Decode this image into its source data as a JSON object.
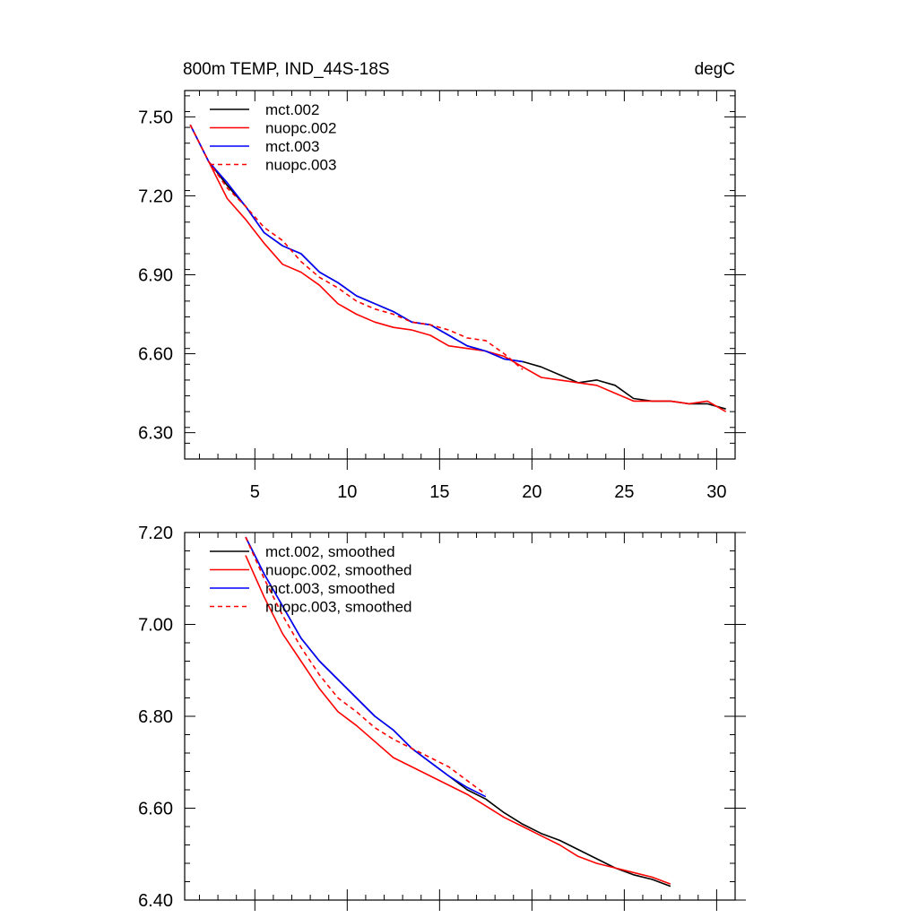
{
  "chart_data": [
    {
      "type": "line",
      "title": "800m TEMP, IND_44S-18S",
      "units": "degC",
      "xlabel": "",
      "ylabel": "",
      "xlim": [
        1.2,
        31.0
      ],
      "ylim": [
        6.2,
        7.6
      ],
      "xticks": [
        5,
        10,
        15,
        20,
        25,
        30
      ],
      "xtick_labels": [
        "5",
        "10",
        "15",
        "20",
        "25",
        "30"
      ],
      "yticks": [
        6.3,
        6.6,
        6.9,
        7.2,
        7.5
      ],
      "ytick_labels": [
        "6.30",
        "6.60",
        "6.90",
        "7.20",
        "7.50"
      ],
      "legend_position": "top-left",
      "series": [
        {
          "name": "mct.002",
          "color": "#000000",
          "style": "solid",
          "x": [
            1.5,
            2.5,
            3.5,
            4.5,
            5.5,
            6.5,
            7.5,
            8.5,
            9.5,
            10.5,
            11.5,
            12.5,
            13.5,
            14.5,
            15.5,
            16.5,
            17.5,
            18.5,
            19.5,
            20.5,
            21.5,
            22.5,
            23.5,
            24.5,
            25.5,
            26.5,
            27.5,
            28.5,
            29.5,
            30.5
          ],
          "values": [
            7.47,
            7.33,
            7.24,
            7.16,
            7.06,
            7.01,
            6.98,
            6.91,
            6.87,
            6.82,
            6.79,
            6.76,
            6.72,
            6.71,
            6.67,
            6.63,
            6.61,
            6.58,
            6.57,
            6.55,
            6.52,
            6.49,
            6.5,
            6.48,
            6.43,
            6.42,
            6.42,
            6.41,
            6.41,
            6.39
          ]
        },
        {
          "name": "nuopc.002",
          "color": "#ff0000",
          "style": "solid",
          "x": [
            1.5,
            2.5,
            3.5,
            4.5,
            5.5,
            6.5,
            7.5,
            8.5,
            9.5,
            10.5,
            11.5,
            12.5,
            13.5,
            14.5,
            15.5,
            16.5,
            17.5,
            18.5,
            19.5,
            20.5,
            21.5,
            22.5,
            23.5,
            24.5,
            25.5,
            26.5,
            27.5,
            28.5,
            29.5,
            30.5
          ],
          "values": [
            7.47,
            7.33,
            7.19,
            7.11,
            7.02,
            6.94,
            6.91,
            6.86,
            6.79,
            6.75,
            6.72,
            6.7,
            6.69,
            6.67,
            6.63,
            6.62,
            6.61,
            6.59,
            6.55,
            6.51,
            6.5,
            6.49,
            6.48,
            6.45,
            6.42,
            6.42,
            6.42,
            6.41,
            6.42,
            6.38
          ]
        },
        {
          "name": "mct.003",
          "color": "#0000ff",
          "style": "solid",
          "x": [
            1.5,
            2.5,
            3.5,
            4.5,
            5.5,
            6.5,
            7.5,
            8.5,
            9.5,
            10.5,
            11.5,
            12.5,
            13.5,
            14.5,
            15.5,
            16.5,
            17.5,
            18.5,
            19.5
          ],
          "values": [
            7.47,
            7.33,
            7.25,
            7.16,
            7.06,
            7.01,
            6.98,
            6.91,
            6.87,
            6.82,
            6.79,
            6.76,
            6.72,
            6.71,
            6.67,
            6.63,
            6.61,
            6.58,
            6.57
          ]
        },
        {
          "name": "nuopc.003",
          "color": "#ff0000",
          "style": "dashed",
          "x": [
            1.5,
            2.5,
            3.5,
            4.5,
            5.5,
            6.5,
            7.5,
            8.5,
            9.5,
            10.5,
            11.5,
            12.5,
            13.5,
            14.5,
            15.5,
            16.5,
            17.5,
            18.5,
            19.5
          ],
          "values": [
            7.47,
            7.33,
            7.23,
            7.16,
            7.08,
            7.03,
            6.95,
            6.89,
            6.85,
            6.8,
            6.77,
            6.75,
            6.72,
            6.71,
            6.69,
            6.66,
            6.65,
            6.6,
            6.54
          ]
        }
      ]
    },
    {
      "type": "line",
      "title": "",
      "xlabel": "",
      "ylabel": "",
      "xlim": [
        1.2,
        31.0
      ],
      "ylim": [
        6.4,
        7.2
      ],
      "xticks": [
        5,
        10,
        15,
        20,
        25,
        30
      ],
      "xtick_labels": [],
      "yticks": [
        6.4,
        6.6,
        6.8,
        7.0,
        7.2
      ],
      "ytick_labels": [
        "6.40",
        "6.60",
        "6.80",
        "7.00",
        "7.20"
      ],
      "legend_position": "top-left",
      "series": [
        {
          "name": "mct.002, smoothed",
          "color": "#000000",
          "style": "solid",
          "x": [
            4.5,
            5.5,
            6.5,
            7.5,
            8.5,
            9.5,
            10.5,
            11.5,
            12.5,
            13.5,
            14.5,
            15.5,
            16.5,
            17.5,
            18.5,
            19.5,
            20.5,
            21.5,
            22.5,
            23.5,
            24.5,
            25.5,
            26.5,
            27.5
          ],
          "values": [
            7.19,
            7.11,
            7.04,
            6.97,
            6.92,
            6.88,
            6.84,
            6.8,
            6.77,
            6.73,
            6.7,
            6.67,
            6.64,
            6.62,
            6.59,
            6.565,
            6.545,
            6.53,
            6.51,
            6.49,
            6.47,
            6.455,
            6.445,
            6.43
          ]
        },
        {
          "name": "nuopc.002, smoothed",
          "color": "#ff0000",
          "style": "solid",
          "x": [
            4.5,
            5.5,
            6.5,
            7.5,
            8.5,
            9.5,
            10.5,
            11.5,
            12.5,
            13.5,
            14.5,
            15.5,
            16.5,
            17.5,
            18.5,
            19.5,
            20.5,
            21.5,
            22.5,
            23.5,
            24.5,
            25.5,
            26.5,
            27.5
          ],
          "values": [
            7.15,
            7.06,
            6.98,
            6.92,
            6.86,
            6.81,
            6.78,
            6.745,
            6.71,
            6.69,
            6.67,
            6.65,
            6.63,
            6.605,
            6.58,
            6.56,
            6.54,
            6.52,
            6.495,
            6.48,
            6.47,
            6.46,
            6.45,
            6.435
          ]
        },
        {
          "name": "mct.003, smoothed",
          "color": "#0000ff",
          "style": "solid",
          "x": [
            4.5,
            5.5,
            6.5,
            7.5,
            8.5,
            9.5,
            10.5,
            11.5,
            12.5,
            13.5,
            14.5,
            15.5,
            16.5,
            17.5
          ],
          "values": [
            7.19,
            7.11,
            7.04,
            6.97,
            6.92,
            6.88,
            6.84,
            6.8,
            6.77,
            6.73,
            6.7,
            6.67,
            6.645,
            6.625
          ]
        },
        {
          "name": "nuopc.003, smoothed",
          "color": "#ff0000",
          "style": "dashed",
          "x": [
            4.5,
            5.5,
            6.5,
            7.5,
            8.5,
            9.5,
            10.5,
            11.5,
            12.5,
            13.5,
            14.5,
            15.5,
            16.5,
            17.5
          ],
          "values": [
            7.19,
            7.1,
            7.02,
            6.95,
            6.89,
            6.84,
            6.81,
            6.775,
            6.75,
            6.73,
            6.71,
            6.69,
            6.66,
            6.63
          ]
        }
      ]
    }
  ]
}
